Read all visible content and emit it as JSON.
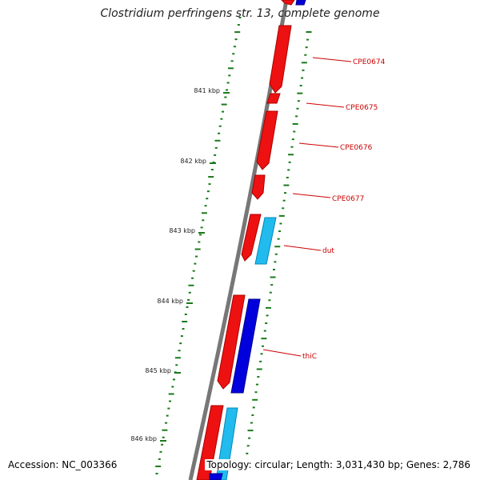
{
  "title": "Clostridium perfringens str. 13, complete genome",
  "footer": {
    "accession": "Accession: NC_003366",
    "summary": "Topology: circular; Length: 3,031,430 bp; Genes: 2,786"
  },
  "colors": {
    "forward_gene": "#ee1111",
    "reverse_gene": "#0000dd",
    "reverse_light": "#22bbee",
    "backbone": "#777777",
    "gc_ticks": "#1a7a1a",
    "label": "#cc0000"
  },
  "kbp_labels": [
    "841 kbp",
    "842 kbp",
    "843 kbp",
    "844 kbp",
    "845 kbp",
    "846 kbp"
  ],
  "gene_labels": [
    "CPE0674",
    "CPE0675",
    "CPE0676",
    "CPE0677",
    "dut",
    "thiC"
  ]
}
